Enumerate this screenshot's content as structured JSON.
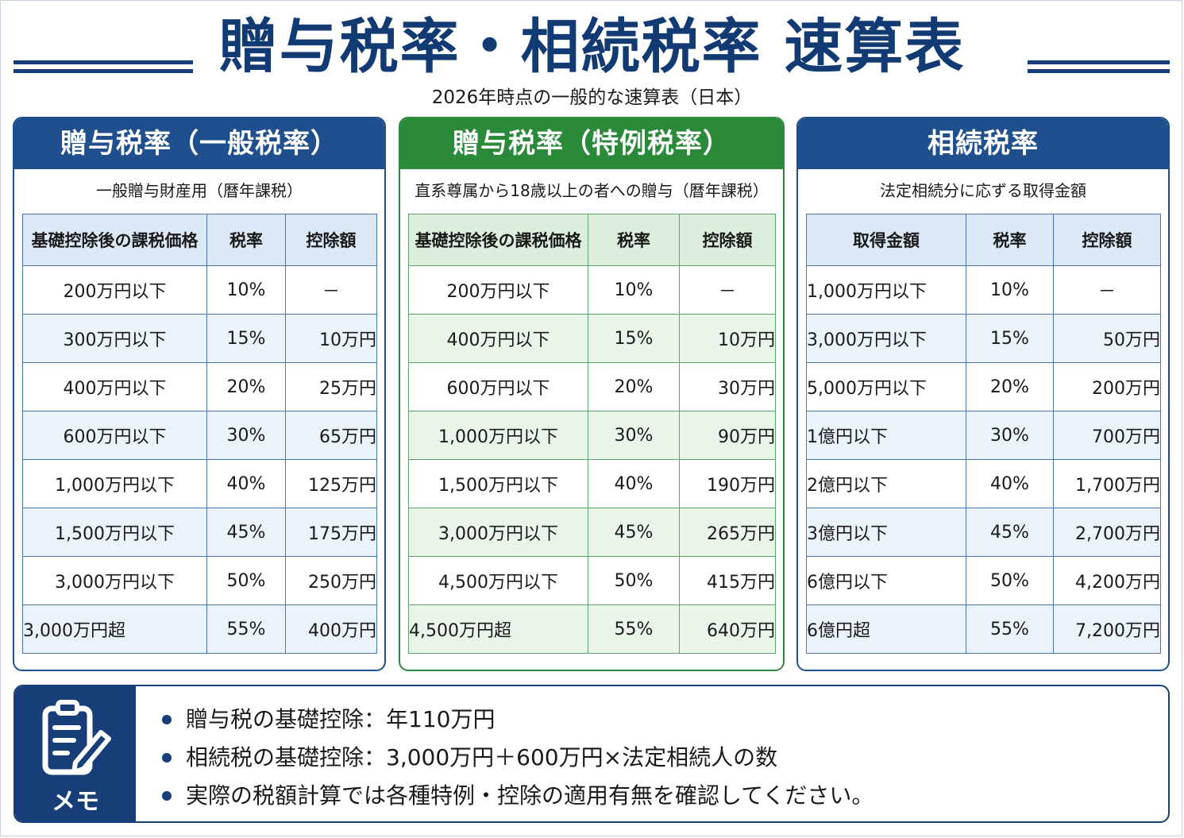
{
  "title": "贈与税率・相続税率 速算表",
  "subtitle": "2026年時点の一般的な速算表（日本）",
  "headers": [
    "基礎控除後の課税価格",
    "税率",
    "控除額"
  ],
  "panels": [
    {
      "title": "贈与税率（一般税率）",
      "subtitle": "一般贈与財産用（暦年課税）",
      "columns": [
        "基礎控除後の課税価格",
        "税率",
        "控除額"
      ],
      "rows": [
        [
          "200万円以下",
          "10%",
          "－"
        ],
        [
          "300万円以下",
          "15%",
          "10万円"
        ],
        [
          "400万円以下",
          "20%",
          "25万円"
        ],
        [
          "600万円以下",
          "30%",
          "65万円"
        ],
        [
          "1,000万円以下",
          "40%",
          "125万円"
        ],
        [
          "1,500万円以下",
          "45%",
          "175万円"
        ],
        [
          "3,000万円以下",
          "50%",
          "250万円"
        ],
        [
          "3,000万円超",
          "55%",
          "400万円"
        ]
      ]
    },
    {
      "title": "贈与税率（特例税率）",
      "subtitle": "直系尊属から18歳以上の者への贈与（暦年課税）",
      "columns": [
        "基礎控除後の課税価格",
        "税率",
        "控除額"
      ],
      "rows": [
        [
          "200万円以下",
          "10%",
          "－"
        ],
        [
          "400万円以下",
          "15%",
          "10万円"
        ],
        [
          "600万円以下",
          "20%",
          "30万円"
        ],
        [
          "1,000万円以下",
          "30%",
          "90万円"
        ],
        [
          "1,500万円以下",
          "40%",
          "190万円"
        ],
        [
          "3,000万円以下",
          "45%",
          "265万円"
        ],
        [
          "4,500万円以下",
          "50%",
          "415万円"
        ],
        [
          "4,500万円超",
          "55%",
          "640万円"
        ]
      ]
    },
    {
      "title": "相続税率",
      "subtitle": "法定相続分に応ずる取得金額",
      "columns": [
        "取得金額",
        "税率",
        "控除額"
      ],
      "rows": [
        [
          "1,000万円以下",
          "10%",
          "－"
        ],
        [
          "3,000万円以下",
          "15%",
          "50万円"
        ],
        [
          "5,000万円以下",
          "20%",
          "200万円"
        ],
        [
          "1億円以下",
          "30%",
          "700万円"
        ],
        [
          "2億円以下",
          "40%",
          "1,700万円"
        ],
        [
          "3億円以下",
          "45%",
          "2,700万円"
        ],
        [
          "6億円以下",
          "50%",
          "4,200万円"
        ],
        [
          "6億円超",
          "55%",
          "7,200万円"
        ]
      ]
    }
  ],
  "memo": {
    "label": "メモ",
    "icon": "clipboard-pencil-icon",
    "items": [
      "贈与税の基礎控除：年110万円",
      "相続税の基礎控除：3,000万円＋600万円×法定相続人の数",
      "実際の税額計算では各種特例・控除の適用有無を確認してください。"
    ]
  },
  "colors": {
    "navy": "#173e78",
    "blue": "#1f4f8c",
    "green": "#2a8a3a",
    "blue_header_cell": "#dbe8f6",
    "green_header_cell": "#dcefdc"
  }
}
